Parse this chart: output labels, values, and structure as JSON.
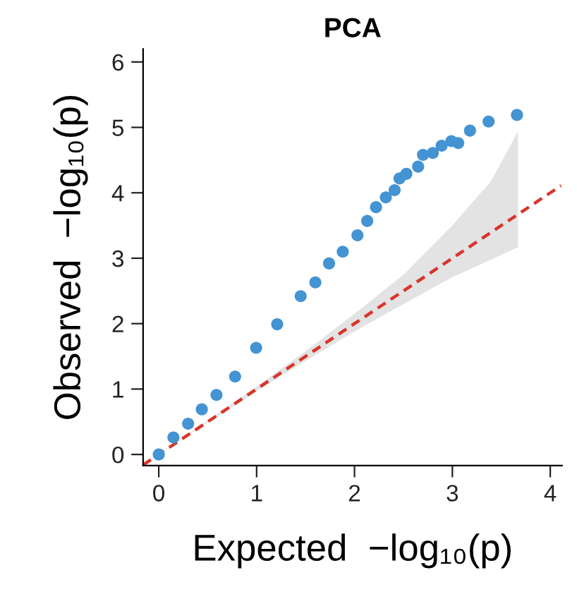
{
  "chart_data": {
    "type": "scatter",
    "title": "PCA",
    "xlabel": "Expected  −log₁₀(p)",
    "ylabel": "Observed  −log₁₀(p)",
    "xlim": [
      -0.16,
      4.12
    ],
    "ylim": [
      -0.17,
      6.2
    ],
    "xticks": [
      0,
      1,
      2,
      3,
      4
    ],
    "yticks": [
      0,
      1,
      2,
      3,
      4,
      5,
      6
    ],
    "grid": false,
    "marker": "circle",
    "series": [
      {
        "color": "#4493d3",
        "x": [
          0,
          0.15,
          0.3,
          0.44,
          0.59,
          0.78,
          0.995,
          1.21,
          1.45,
          1.6,
          1.74,
          1.88,
          2.03,
          2.13,
          2.22,
          2.32,
          2.41,
          2.46,
          2.53,
          2.65,
          2.7,
          2.8,
          2.89,
          2.99,
          3.06,
          3.18,
          3.37,
          3.66
        ],
        "values": [
          0,
          0.26,
          0.47,
          0.69,
          0.91,
          1.19,
          1.63,
          1.99,
          2.42,
          2.63,
          2.92,
          3.1,
          3.35,
          3.57,
          3.78,
          3.93,
          4.04,
          4.22,
          4.29,
          4.4,
          4.58,
          4.61,
          4.72,
          4.79,
          4.76,
          4.95,
          5.09,
          5.19
        ]
      },
      {
        "type": "line",
        "color": "#d9342b",
        "line_style": "dashed",
        "marker": "none",
        "x": [
          -0.16,
          0,
          1,
          1.5,
          2,
          2.5,
          3,
          3.4,
          3.67,
          4.11
        ],
        "values": [
          -0.16,
          0,
          1,
          1.5,
          2,
          2.5,
          3,
          3.4,
          3.67,
          4.11
        ],
        "lower": [
          null,
          0,
          0.97,
          1.43,
          1.88,
          2.3,
          2.71,
          2.98,
          3.17,
          null
        ],
        "upper": [
          null,
          0,
          1.04,
          1.58,
          2.15,
          2.75,
          3.5,
          4.19,
          4.94,
          null
        ]
      }
    ]
  }
}
